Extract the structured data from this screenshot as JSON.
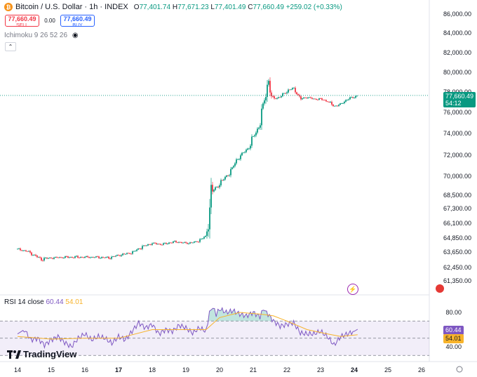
{
  "header": {
    "symbol": "Bitcoin / U.S. Dollar · 1h · INDEX",
    "open_label": "O",
    "open": "77,401.74",
    "high_label": "H",
    "high": "77,671.23",
    "low_label": "L",
    "low": "77,401.49",
    "close_label": "C",
    "close": "77,660.49",
    "change": "+259.02 (+0.33%)"
  },
  "trade": {
    "sell_price": "77,660.49",
    "sell_label": "SELL",
    "spread": "0.00",
    "buy_price": "77,660.49",
    "buy_label": "BUY"
  },
  "indicator": {
    "label": "Ichimoku 9 26 52 26"
  },
  "rsi_header": {
    "name": "RSI 14 close",
    "rsi_value": "60.44",
    "ma_value": "54.01"
  },
  "price_tag": {
    "price": "77,660.49",
    "countdown": "54:12"
  },
  "rsi_tags": {
    "rsi": "60.44",
    "ma": "54.01"
  },
  "logo": {
    "text": "TradingView"
  },
  "colors": {
    "up": "#089981",
    "down": "#f23645",
    "rsi": "#7e57c2",
    "rsi_ma": "#f7b32b"
  },
  "chart_data": [
    {
      "type": "candlestick",
      "title": "Bitcoin / U.S. Dollar · 1h · INDEX",
      "x_ticks": [
        "14",
        "15",
        "16",
        "17",
        "18",
        "19",
        "20",
        "21",
        "22",
        "23",
        "24",
        "25",
        "26"
      ],
      "y_ticks": [
        "61,350.00",
        "62,450.00",
        "63,650.00",
        "64,850.00",
        "66,100.00",
        "67,300.00",
        "68,500.00",
        "70,000.00",
        "72,000.00",
        "74,000.00",
        "76,000.00",
        "78,000.00",
        "80,000.00",
        "82,000.00",
        "84,000.00",
        "86,000.00"
      ],
      "last_price": 77660.49,
      "close_path": [
        [
          0.0,
          63900
        ],
        [
          0.3,
          63700
        ],
        [
          0.7,
          63100
        ],
        [
          1.0,
          63200
        ],
        [
          1.5,
          63250
        ],
        [
          2.0,
          63250
        ],
        [
          2.4,
          63250
        ],
        [
          2.7,
          63200
        ],
        [
          3.0,
          63400
        ],
        [
          3.4,
          63600
        ],
        [
          3.7,
          64100
        ],
        [
          4.0,
          64400
        ],
        [
          4.3,
          64300
        ],
        [
          4.6,
          64500
        ],
        [
          4.8,
          64500
        ],
        [
          5.0,
          64400
        ],
        [
          5.3,
          64500
        ],
        [
          5.6,
          65000
        ],
        [
          5.7,
          67200
        ],
        [
          5.75,
          68700
        ],
        [
          5.9,
          69100
        ],
        [
          6.1,
          69700
        ],
        [
          6.3,
          70300
        ],
        [
          6.5,
          71500
        ],
        [
          6.7,
          72200
        ],
        [
          6.9,
          72800
        ],
        [
          7.0,
          73700
        ],
        [
          7.2,
          74800
        ],
        [
          7.3,
          76800
        ],
        [
          7.4,
          78300
        ],
        [
          7.45,
          79300
        ],
        [
          7.55,
          77300
        ],
        [
          7.8,
          77500
        ],
        [
          8.0,
          78100
        ],
        [
          8.2,
          78400
        ],
        [
          8.4,
          77300
        ],
        [
          8.6,
          77500
        ],
        [
          8.8,
          77300
        ],
        [
          9.0,
          77300
        ],
        [
          9.2,
          77100
        ],
        [
          9.4,
          76600
        ],
        [
          9.6,
          76800
        ],
        [
          9.8,
          77300
        ],
        [
          10.0,
          77500
        ],
        [
          10.1,
          77660
        ]
      ]
    },
    {
      "type": "line",
      "title": "RSI 14 close",
      "y_ticks": [
        "40.00",
        "80.00"
      ],
      "series": [
        {
          "name": "RSI",
          "values": [
            [
              0.0,
              55
            ],
            [
              0.2,
              60
            ],
            [
              0.4,
              48
            ],
            [
              0.6,
              50
            ],
            [
              0.8,
              42
            ],
            [
              1.0,
              48
            ],
            [
              1.2,
              52
            ],
            [
              1.4,
              45
            ],
            [
              1.6,
              40
            ],
            [
              1.8,
              50
            ],
            [
              2.0,
              55
            ],
            [
              2.2,
              48
            ],
            [
              2.4,
              52
            ],
            [
              2.6,
              50
            ],
            [
              2.8,
              44
            ],
            [
              3.0,
              52
            ],
            [
              3.2,
              48
            ],
            [
              3.4,
              58
            ],
            [
              3.6,
              68
            ],
            [
              3.8,
              62
            ],
            [
              4.0,
              66
            ],
            [
              4.2,
              55
            ],
            [
              4.4,
              60
            ],
            [
              4.6,
              58
            ],
            [
              4.8,
              65
            ],
            [
              5.0,
              62
            ],
            [
              5.2,
              56
            ],
            [
              5.4,
              62
            ],
            [
              5.6,
              58
            ],
            [
              5.7,
              80
            ],
            [
              5.8,
              86
            ],
            [
              5.9,
              78
            ],
            [
              6.0,
              84
            ],
            [
              6.2,
              80
            ],
            [
              6.4,
              82
            ],
            [
              6.6,
              78
            ],
            [
              6.8,
              76
            ],
            [
              7.0,
              80
            ],
            [
              7.2,
              75
            ],
            [
              7.3,
              84
            ],
            [
              7.4,
              80
            ],
            [
              7.6,
              70
            ],
            [
              7.8,
              64
            ],
            [
              8.0,
              66
            ],
            [
              8.2,
              68
            ],
            [
              8.4,
              56
            ],
            [
              8.6,
              55
            ],
            [
              8.8,
              55
            ],
            [
              9.0,
              58
            ],
            [
              9.2,
              52
            ],
            [
              9.4,
              42
            ],
            [
              9.6,
              52
            ],
            [
              9.8,
              55
            ],
            [
              10.0,
              58
            ],
            [
              10.1,
              60.44
            ]
          ]
        },
        {
          "name": "RSI-based MA",
          "values": [
            [
              0.0,
              52
            ],
            [
              1.0,
              49
            ],
            [
              2.0,
              50
            ],
            [
              3.0,
              50
            ],
            [
              4.0,
              60
            ],
            [
              5.0,
              60
            ],
            [
              5.6,
              60
            ],
            [
              6.0,
              74
            ],
            [
              6.6,
              80
            ],
            [
              7.2,
              78
            ],
            [
              7.6,
              76
            ],
            [
              8.0,
              70
            ],
            [
              8.6,
              60
            ],
            [
              9.2,
              55
            ],
            [
              9.6,
              52
            ],
            [
              10.1,
              54.01
            ]
          ]
        }
      ]
    }
  ]
}
